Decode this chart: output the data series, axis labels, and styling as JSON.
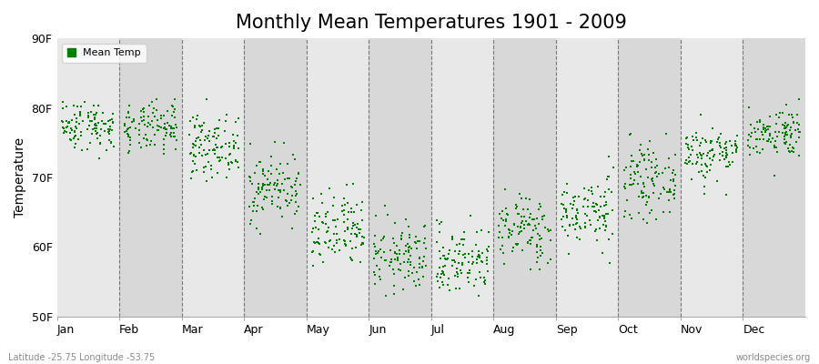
{
  "title": "Monthly Mean Temperatures 1901 - 2009",
  "ylabel": "Temperature",
  "xlabel_labels": [
    "Jan",
    "Feb",
    "Mar",
    "Apr",
    "May",
    "Jun",
    "Jul",
    "Aug",
    "Sep",
    "Oct",
    "Nov",
    "Dec"
  ],
  "ytick_labels": [
    "50F",
    "60F",
    "70F",
    "80F",
    "90F"
  ],
  "ytick_values": [
    50,
    60,
    70,
    80,
    90
  ],
  "ylim": [
    50,
    90
  ],
  "dot_color": "#008000",
  "band_color_odd": "#e8e8e8",
  "band_color_even": "#d8d8d8",
  "bg_color": "#e8e8e8",
  "legend_label": "Mean Temp",
  "footer_left": "Latitude -25.75 Longitude -53.75",
  "footer_right": "worldspecies.org",
  "title_fontsize": 15,
  "num_years": 109,
  "monthly_means_F": [
    77.5,
    77.0,
    74.5,
    68.5,
    62.0,
    58.5,
    58.0,
    62.5,
    65.0,
    69.5,
    73.5,
    76.5
  ],
  "monthly_stds_F": [
    1.8,
    1.8,
    2.2,
    2.5,
    2.8,
    2.5,
    2.5,
    2.5,
    2.5,
    2.5,
    2.0,
    1.8
  ]
}
